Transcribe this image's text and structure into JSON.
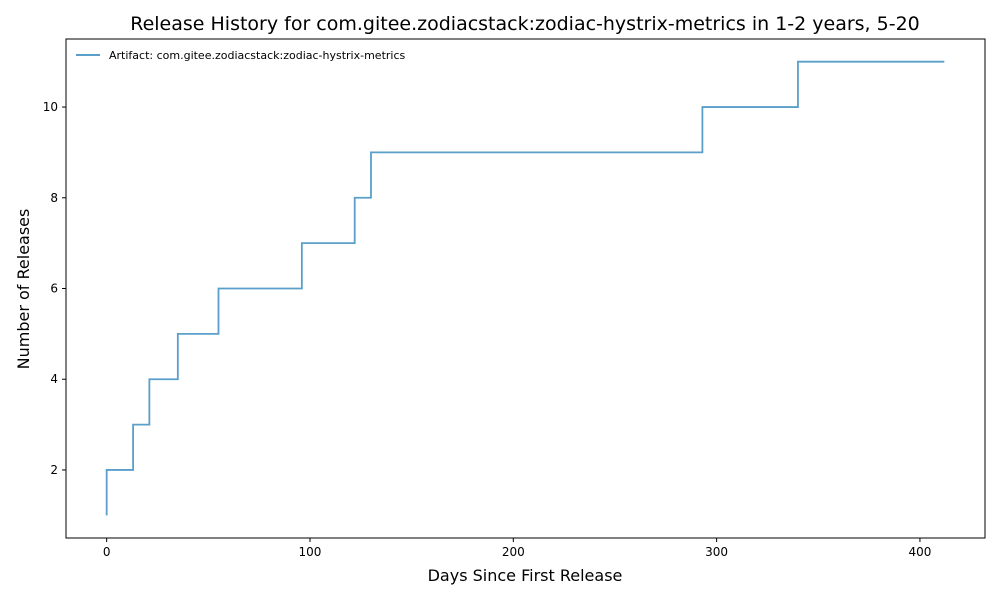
{
  "chart_data": {
    "type": "line",
    "step": "post",
    "title": "Release History for com.gitee.zodiacstack:zodiac-hystrix-metrics in 1-2 years, 5-20",
    "xlabel": "Days Since First Release",
    "ylabel": "Number of Releases",
    "xlim": [
      -20,
      432
    ],
    "ylim": [
      0.5,
      11.5
    ],
    "xticks": [
      0,
      100,
      200,
      300,
      400
    ],
    "yticks": [
      2,
      4,
      6,
      8,
      10
    ],
    "grid": false,
    "legend_position": "top-left",
    "series": [
      {
        "name": "Artifact: com.gitee.zodiacstack:zodiac-hystrix-metrics",
        "color": "#5a9fc9",
        "x": [
          0,
          0,
          13,
          21,
          35,
          55,
          96,
          122,
          130,
          293,
          340,
          412
        ],
        "y": [
          1,
          2,
          3,
          4,
          5,
          6,
          7,
          8,
          9,
          10,
          11,
          11
        ]
      }
    ]
  }
}
